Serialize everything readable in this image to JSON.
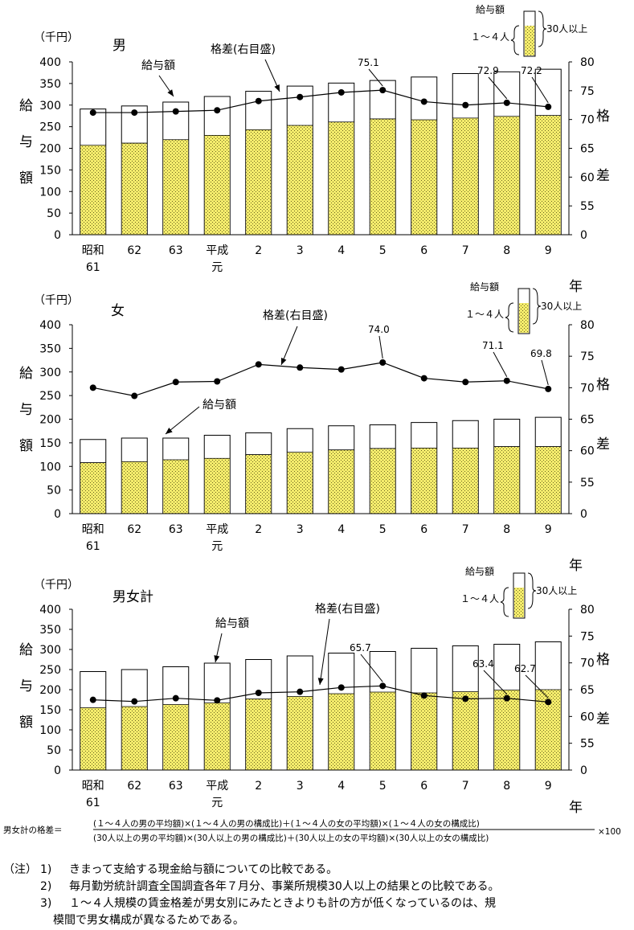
{
  "legend": {
    "top": "給与額",
    "small_firm": "１～４人",
    "large_firm": "30人以上"
  },
  "common": {
    "unit": "（千円）",
    "left_axis_chars": [
      "給",
      "与",
      "額"
    ],
    "right_axis_chars": [
      "格",
      "差"
    ],
    "year_label": "年",
    "pay_label": "給与額",
    "gap_label": "格差(右目盛)",
    "categories": [
      [
        "昭和",
        "61"
      ],
      [
        "62"
      ],
      [
        "63"
      ],
      [
        "平成",
        "元"
      ],
      [
        "2"
      ],
      [
        "3"
      ],
      [
        "4"
      ],
      [
        "5"
      ],
      [
        "6"
      ],
      [
        "7"
      ],
      [
        "8"
      ],
      [
        "9"
      ]
    ]
  },
  "chart_data": [
    {
      "type": "bar",
      "title": "男",
      "categories": [
        "昭和61",
        "62",
        "63",
        "平成元",
        "2",
        "3",
        "4",
        "5",
        "6",
        "7",
        "8",
        "9"
      ],
      "ylim": [
        0,
        400
      ],
      "y2lim": [
        0,
        80
      ],
      "yticks": [
        "0",
        "50",
        "100",
        "150",
        "200",
        "250",
        "300",
        "350",
        "400"
      ],
      "y2ticks": [
        "0",
        "55",
        "60",
        "65",
        "70",
        "75",
        "80"
      ],
      "series": [
        {
          "name": "１～４人",
          "values": [
            207,
            212,
            220,
            230,
            243,
            253,
            261,
            268,
            266,
            270,
            274,
            276
          ]
        },
        {
          "name": "30人以上",
          "values": [
            291,
            298,
            307,
            320,
            332,
            344,
            351,
            357,
            365,
            373,
            377,
            383
          ]
        },
        {
          "name": "格差(右目盛)",
          "axis": "right",
          "values": [
            71.2,
            71.2,
            71.4,
            71.6,
            73.2,
            73.9,
            74.7,
            75.1,
            73.1,
            72.5,
            72.9,
            72.2
          ]
        }
      ],
      "annotations": [
        {
          "index": 7,
          "text": "75.1"
        },
        {
          "index": 10,
          "text": "72.9"
        },
        {
          "index": 11,
          "text": "72.2"
        }
      ]
    },
    {
      "type": "bar",
      "title": "女",
      "categories": [
        "昭和61",
        "62",
        "63",
        "平成元",
        "2",
        "3",
        "4",
        "5",
        "6",
        "7",
        "8",
        "9"
      ],
      "ylim": [
        0,
        400
      ],
      "y2lim": [
        0,
        80
      ],
      "yticks": [
        "0",
        "50",
        "100",
        "150",
        "200",
        "250",
        "300",
        "350",
        "400"
      ],
      "y2ticks": [
        "0",
        "55",
        "60",
        "65",
        "70",
        "75",
        "80"
      ],
      "series": [
        {
          "name": "１～４人",
          "values": [
            108,
            110,
            114,
            117,
            125,
            130,
            135,
            138,
            139,
            139,
            142,
            142
          ]
        },
        {
          "name": "30人以上",
          "values": [
            157,
            160,
            160,
            166,
            171,
            180,
            186,
            188,
            193,
            197,
            200,
            204
          ]
        },
        {
          "name": "格差(右目盛)",
          "axis": "right",
          "values": [
            70.0,
            68.7,
            70.9,
            71.0,
            73.7,
            73.2,
            72.9,
            74.0,
            71.5,
            70.9,
            71.1,
            69.8
          ]
        }
      ],
      "annotations": [
        {
          "index": 7,
          "text": "74.0"
        },
        {
          "index": 10,
          "text": "71.1"
        },
        {
          "index": 11,
          "text": "69.8"
        }
      ]
    },
    {
      "type": "bar",
      "title": "男女計",
      "categories": [
        "昭和61",
        "62",
        "63",
        "平成元",
        "2",
        "3",
        "4",
        "5",
        "6",
        "7",
        "8",
        "9"
      ],
      "ylim": [
        0,
        400
      ],
      "y2lim": [
        0,
        80
      ],
      "yticks": [
        "0",
        "50",
        "100",
        "150",
        "200",
        "250",
        "300",
        "350",
        "400"
      ],
      "y2ticks": [
        "0",
        "55",
        "60",
        "65",
        "70",
        "75",
        "80"
      ],
      "series": [
        {
          "name": "１～４人",
          "values": [
            155,
            158,
            163,
            167,
            177,
            183,
            190,
            194,
            192,
            195,
            199,
            200
          ]
        },
        {
          "name": "30人以上",
          "values": [
            245,
            250,
            257,
            266,
            275,
            284,
            291,
            295,
            303,
            309,
            313,
            319
          ]
        },
        {
          "name": "格差(右目盛)",
          "axis": "right",
          "values": [
            63.1,
            62.8,
            63.4,
            63.0,
            64.4,
            64.6,
            65.4,
            65.7,
            63.9,
            63.3,
            63.4,
            62.7
          ]
        }
      ],
      "annotations": [
        {
          "index": 7,
          "text": "65.7"
        },
        {
          "index": 10,
          "text": "63.4"
        },
        {
          "index": 11,
          "text": "62.7"
        }
      ]
    }
  ],
  "formula": {
    "lhs": "男女計の格差＝",
    "numerator": "(１～４人の男の平均額)×(１～４人の男の構成比)＋(１～４人の女の平均額)×(１～４人の女の構成比)",
    "denominator": "(30人以上の男の平均額)×(30人以上の男の構成比)＋(30人以上の女の平均額)×(30人以上の女の構成比)",
    "times": "×100"
  },
  "notes": {
    "prefix": "（注）",
    "items": [
      {
        "num": "1)",
        "text": "きまって支給する現金給与額についての比較である。"
      },
      {
        "num": "2)",
        "text": "毎月勤労統計調査全国調査各年７月分、事業所規模30人以上の結果との比較である。"
      },
      {
        "num": "3)",
        "text": "１～４人規模の賃金格差が男女別にみたときよりも計の方が低くなっているのは、規"
      }
    ],
    "continuation": "模間で男女構成が異なるためである。"
  }
}
